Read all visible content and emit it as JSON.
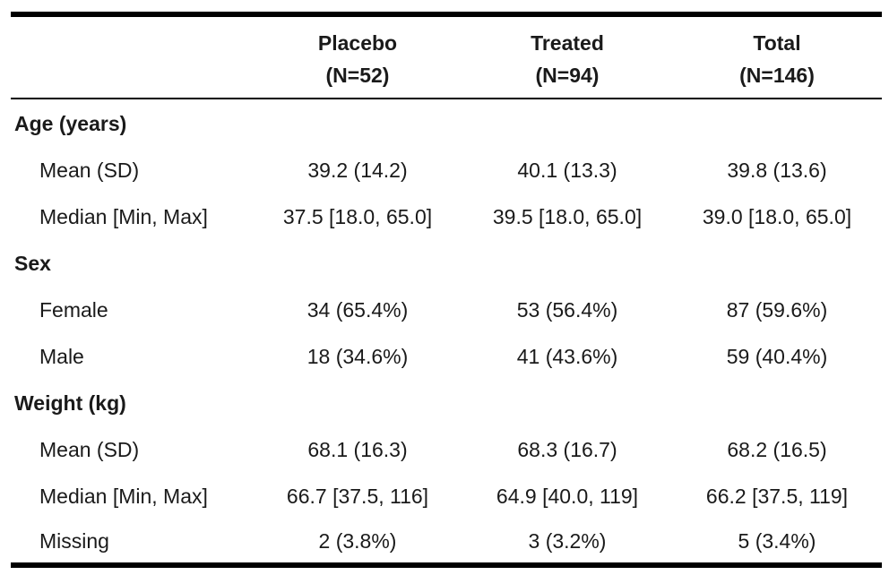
{
  "header": {
    "columns": [
      {
        "name": "Placebo",
        "n": "(N=52)"
      },
      {
        "name": "Treated",
        "n": "(N=94)"
      },
      {
        "name": "Total",
        "n": "(N=146)"
      }
    ]
  },
  "groups": [
    {
      "label": "Age (years)",
      "rows": [
        {
          "label": "Mean (SD)",
          "values": [
            "39.2 (14.2)",
            "40.1 (13.3)",
            "39.8 (13.6)"
          ]
        },
        {
          "label": "Median [Min, Max]",
          "values": [
            "37.5 [18.0, 65.0]",
            "39.5 [18.0, 65.0]",
            "39.0 [18.0, 65.0]"
          ]
        }
      ]
    },
    {
      "label": "Sex",
      "rows": [
        {
          "label": "Female",
          "values": [
            "34 (65.4%)",
            "53 (56.4%)",
            "87 (59.6%)"
          ]
        },
        {
          "label": "Male",
          "values": [
            "18 (34.6%)",
            "41 (43.6%)",
            "59 (40.4%)"
          ]
        }
      ]
    },
    {
      "label": "Weight (kg)",
      "rows": [
        {
          "label": "Mean (SD)",
          "values": [
            "68.1 (16.3)",
            "68.3 (16.7)",
            "68.2 (16.5)"
          ]
        },
        {
          "label": "Median [Min, Max]",
          "values": [
            "66.7 [37.5, 116]",
            "64.9 [40.0, 119]",
            "66.2 [37.5, 119]"
          ]
        },
        {
          "label": "Missing",
          "values": [
            "2 (3.8%)",
            "3 (3.2%)",
            "5 (3.4%)"
          ]
        }
      ]
    }
  ]
}
